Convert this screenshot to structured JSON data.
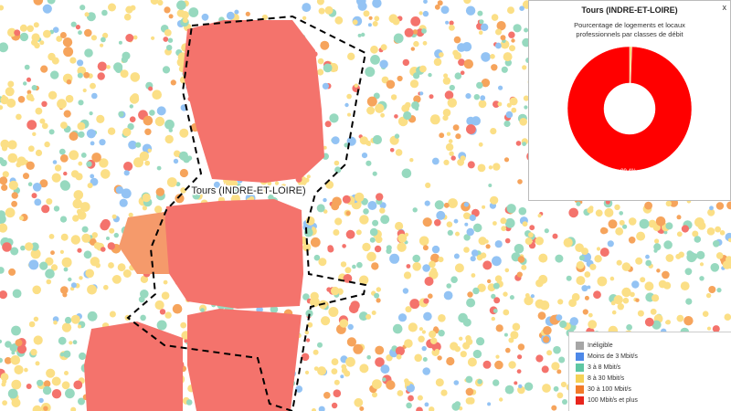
{
  "map": {
    "label": "Tours (INDRE-ET-LOIRE)"
  },
  "popup": {
    "close": "x",
    "title": "Tours (INDRE-ET-LOIRE)"
  },
  "chart_data": {
    "type": "pie",
    "title": "Pourcentage de logements et locaux professionnels par classes de débit",
    "values": [
      0.6,
      99.4
    ],
    "value_labels": [
      null,
      "99.4%"
    ],
    "colors": [
      "#f2d15a",
      "#ff0000"
    ]
  },
  "legend": {
    "items": [
      {
        "label": "Inéligible",
        "color": "#a6a6a6"
      },
      {
        "label": "Moins de 3 Mbit/s",
        "color": "#4d88e8"
      },
      {
        "label": "3 à 8 Mbit/s",
        "color": "#5fc7a3"
      },
      {
        "label": "8 à 30 Mbit/s",
        "color": "#f5d257"
      },
      {
        "label": "30 à 100 Mbit/s",
        "color": "#f27a2a"
      },
      {
        "label": "100 Mbit/s et plus",
        "color": "#e8251d"
      }
    ]
  }
}
